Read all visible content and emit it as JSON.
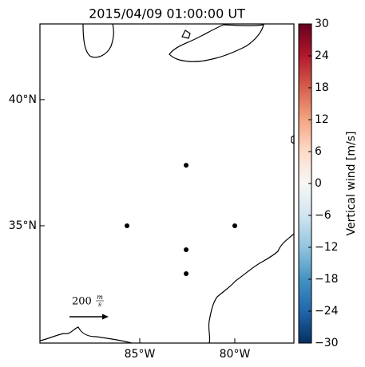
{
  "map": {
    "title": "2015/04/09 01:00:00 UT",
    "lonlim": [
      -90.25,
      -76.89
    ],
    "latlim": [
      30.35,
      43.0
    ],
    "lonticks": [
      {
        "value": -85,
        "label": "85°W"
      },
      {
        "value": -80,
        "label": "80°W"
      }
    ],
    "latticks": [
      {
        "value": 40,
        "label": "40°N"
      },
      {
        "value": 35,
        "label": "35°N"
      }
    ],
    "points": [
      {
        "lon": -82.56,
        "lat": 37.4
      },
      {
        "lon": -85.67,
        "lat": 35.0
      },
      {
        "lon": -80.0,
        "lat": 35.0
      },
      {
        "lon": -82.56,
        "lat": 34.05
      },
      {
        "lon": -82.56,
        "lat": 33.1
      }
    ],
    "scale": {
      "value": "200",
      "unit_num": "m",
      "unit_den": "s"
    },
    "colorbar": {
      "label": "Vertical wind [m/s]",
      "lim": [
        -30,
        30
      ],
      "ticks": [
        {
          "value": -30,
          "label": "−30"
        },
        {
          "value": -24,
          "label": "−24"
        },
        {
          "value": -18,
          "label": "−18"
        },
        {
          "value": -12,
          "label": "−12"
        },
        {
          "value": -6,
          "label": "−6"
        },
        0,
        6,
        12,
        18,
        24,
        30
      ]
    }
  }
}
